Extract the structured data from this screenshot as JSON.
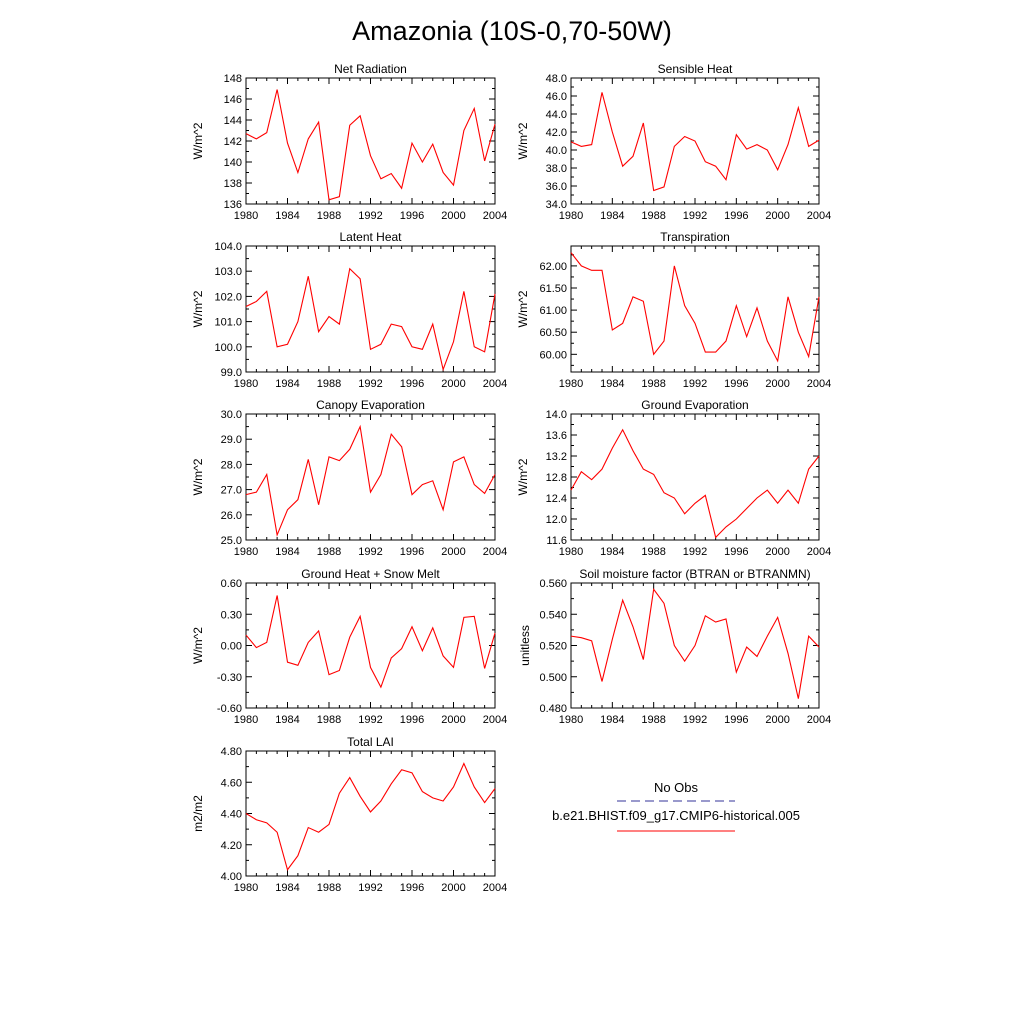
{
  "figure": {
    "title": "Amazonia (10S-0,70-50W)",
    "legend": {
      "entries": [
        {
          "label": "No Obs",
          "color": "#333399",
          "style": "dashed"
        },
        {
          "label": "b.e21.BHIST.f09_g17.CMIP6-historical.005",
          "color": "#ff0000",
          "style": "solid"
        }
      ]
    }
  },
  "chart_data": [
    {
      "type": "line",
      "title": "Net Radiation",
      "ylabel": "W/m^2",
      "xlim": [
        1980,
        2004
      ],
      "ylim": [
        136,
        148
      ],
      "xticks": [
        1980,
        1984,
        1988,
        1992,
        1996,
        2000,
        2004
      ],
      "yticks": [
        136,
        138,
        140,
        142,
        144,
        146,
        148
      ],
      "ytick_labels": [
        "136",
        "138",
        "140",
        "142",
        "144",
        "146",
        "148"
      ],
      "series": [
        {
          "color": "#ff0000",
          "x": [
            1980,
            1981,
            1982,
            1983,
            1984,
            1985,
            1986,
            1987,
            1988,
            1989,
            1990,
            1991,
            1992,
            1993,
            1994,
            1995,
            1996,
            1997,
            1998,
            1999,
            2000,
            2001,
            2002,
            2003,
            2004
          ],
          "values": [
            142.7,
            142.2,
            142.8,
            146.9,
            141.8,
            139.0,
            142.2,
            143.8,
            136.4,
            136.7,
            143.5,
            144.4,
            140.6,
            138.4,
            138.9,
            137.5,
            141.8,
            140.0,
            141.7,
            139.0,
            137.8,
            143.0,
            145.1,
            140.1,
            143.6
          ]
        }
      ]
    },
    {
      "type": "line",
      "title": "Sensible Heat",
      "ylabel": "W/m^2",
      "xlim": [
        1980,
        2004
      ],
      "ylim": [
        34,
        48
      ],
      "xticks": [
        1980,
        1984,
        1988,
        1992,
        1996,
        2000,
        2004
      ],
      "yticks": [
        34,
        36,
        38,
        40,
        42,
        44,
        46,
        48
      ],
      "ytick_labels": [
        "34.0",
        "36.0",
        "38.0",
        "40.0",
        "42.0",
        "44.0",
        "46.0",
        "48.0"
      ],
      "series": [
        {
          "color": "#ff0000",
          "x": [
            1980,
            1981,
            1982,
            1983,
            1984,
            1985,
            1986,
            1987,
            1988,
            1989,
            1990,
            1991,
            1992,
            1993,
            1994,
            1995,
            1996,
            1997,
            1998,
            1999,
            2000,
            2001,
            2002,
            2003,
            2004
          ],
          "values": [
            40.9,
            40.4,
            40.6,
            46.4,
            42.0,
            38.2,
            39.3,
            43.0,
            35.5,
            35.9,
            40.4,
            41.5,
            41.0,
            38.7,
            38.2,
            36.7,
            41.7,
            40.1,
            40.6,
            40.0,
            37.8,
            40.6,
            44.7,
            40.4,
            41.1
          ]
        }
      ]
    },
    {
      "type": "line",
      "title": "Latent Heat",
      "ylabel": "W/m^2",
      "xlim": [
        1980,
        2004
      ],
      "ylim": [
        99,
        104
      ],
      "xticks": [
        1980,
        1984,
        1988,
        1992,
        1996,
        2000,
        2004
      ],
      "yticks": [
        99,
        100,
        101,
        102,
        103,
        104
      ],
      "ytick_labels": [
        "99.0",
        "100.0",
        "101.0",
        "102.0",
        "103.0",
        "104.0"
      ],
      "series": [
        {
          "color": "#ff0000",
          "x": [
            1980,
            1981,
            1982,
            1983,
            1984,
            1985,
            1986,
            1987,
            1988,
            1989,
            1990,
            1991,
            1992,
            1993,
            1994,
            1995,
            1996,
            1997,
            1998,
            1999,
            2000,
            2001,
            2002,
            2003,
            2004
          ],
          "values": [
            101.6,
            101.8,
            102.2,
            100.0,
            100.1,
            101.0,
            102.8,
            100.6,
            101.2,
            100.9,
            103.1,
            102.7,
            99.9,
            100.1,
            100.9,
            100.8,
            100.0,
            99.9,
            100.9,
            99.1,
            100.2,
            102.2,
            100.0,
            99.8,
            102.1
          ]
        }
      ]
    },
    {
      "type": "line",
      "title": "Transpiration",
      "ylabel": "W/m^2",
      "xlim": [
        1980,
        2004
      ],
      "ylim": [
        59.6,
        62.45
      ],
      "xticks": [
        1980,
        1984,
        1988,
        1992,
        1996,
        2000,
        2004
      ],
      "yticks": [
        60.0,
        60.5,
        61.0,
        61.5,
        62.0
      ],
      "ytick_labels": [
        "60.00",
        "60.50",
        "61.00",
        "61.50",
        "62.00"
      ],
      "series": [
        {
          "color": "#ff0000",
          "x": [
            1980,
            1981,
            1982,
            1983,
            1984,
            1985,
            1986,
            1987,
            1988,
            1989,
            1990,
            1991,
            1992,
            1993,
            1994,
            1995,
            1996,
            1997,
            1998,
            1999,
            2000,
            2001,
            2002,
            2003,
            2004
          ],
          "values": [
            62.3,
            62.0,
            61.9,
            61.9,
            60.55,
            60.7,
            61.3,
            61.2,
            60.0,
            60.3,
            62.0,
            61.1,
            60.7,
            60.05,
            60.05,
            60.3,
            61.1,
            60.4,
            61.05,
            60.3,
            59.85,
            61.3,
            60.5,
            59.95,
            61.3
          ]
        }
      ]
    },
    {
      "type": "line",
      "title": "Canopy Evaporation",
      "ylabel": "W/m^2",
      "xlim": [
        1980,
        2004
      ],
      "ylim": [
        25,
        30
      ],
      "xticks": [
        1980,
        1984,
        1988,
        1992,
        1996,
        2000,
        2004
      ],
      "yticks": [
        25,
        26,
        27,
        28,
        29,
        30
      ],
      "ytick_labels": [
        "25.0",
        "26.0",
        "27.0",
        "28.0",
        "29.0",
        "30.0"
      ],
      "series": [
        {
          "color": "#ff0000",
          "x": [
            1980,
            1981,
            1982,
            1983,
            1984,
            1985,
            1986,
            1987,
            1988,
            1989,
            1990,
            1991,
            1992,
            1993,
            1994,
            1995,
            1996,
            1997,
            1998,
            1999,
            2000,
            2001,
            2002,
            2003,
            2004
          ],
          "values": [
            26.8,
            26.9,
            27.6,
            25.2,
            26.2,
            26.6,
            28.2,
            26.4,
            28.3,
            28.15,
            28.6,
            29.5,
            26.9,
            27.6,
            29.2,
            28.7,
            26.8,
            27.2,
            27.35,
            26.2,
            28.1,
            28.3,
            27.2,
            26.85,
            27.6
          ]
        }
      ]
    },
    {
      "type": "line",
      "title": "Ground Evaporation",
      "ylabel": "W/m^2",
      "xlim": [
        1980,
        2004
      ],
      "ylim": [
        11.6,
        14.0
      ],
      "xticks": [
        1980,
        1984,
        1988,
        1992,
        1996,
        2000,
        2004
      ],
      "yticks": [
        11.6,
        12.0,
        12.4,
        12.8,
        13.2,
        13.6,
        14.0
      ],
      "ytick_labels": [
        "11.6",
        "12.0",
        "12.4",
        "12.8",
        "13.2",
        "13.6",
        "14.0"
      ],
      "series": [
        {
          "color": "#ff0000",
          "x": [
            1980,
            1981,
            1982,
            1983,
            1984,
            1985,
            1986,
            1987,
            1988,
            1989,
            1990,
            1991,
            1992,
            1993,
            1994,
            1995,
            1996,
            1997,
            1998,
            1999,
            2000,
            2001,
            2002,
            2003,
            2004
          ],
          "values": [
            12.55,
            12.9,
            12.75,
            12.95,
            13.35,
            13.7,
            13.3,
            12.95,
            12.85,
            12.5,
            12.4,
            12.1,
            12.3,
            12.45,
            11.65,
            11.85,
            12.0,
            12.2,
            12.4,
            12.55,
            12.3,
            12.55,
            12.3,
            12.95,
            13.2
          ]
        }
      ]
    },
    {
      "type": "line",
      "title": "Ground Heat + Snow Melt",
      "ylabel": "W/m^2",
      "xlim": [
        1980,
        2004
      ],
      "ylim": [
        -0.6,
        0.6
      ],
      "xticks": [
        1980,
        1984,
        1988,
        1992,
        1996,
        2000,
        2004
      ],
      "yticks": [
        -0.6,
        -0.3,
        0.0,
        0.3,
        0.6
      ],
      "ytick_labels": [
        "-0.60",
        "-0.30",
        "0.00",
        "0.30",
        "0.60"
      ],
      "series": [
        {
          "color": "#ff0000",
          "x": [
            1980,
            1981,
            1982,
            1983,
            1984,
            1985,
            1986,
            1987,
            1988,
            1989,
            1990,
            1991,
            1992,
            1993,
            1994,
            1995,
            1996,
            1997,
            1998,
            1999,
            2000,
            2001,
            2002,
            2003,
            2004
          ],
          "values": [
            0.1,
            -0.02,
            0.03,
            0.48,
            -0.16,
            -0.19,
            0.03,
            0.14,
            -0.28,
            -0.24,
            0.08,
            0.28,
            -0.21,
            -0.4,
            -0.12,
            -0.03,
            0.18,
            -0.05,
            0.17,
            -0.1,
            -0.21,
            0.27,
            0.28,
            -0.22,
            0.12
          ]
        }
      ]
    },
    {
      "type": "line",
      "title": "Soil moisture factor (BTRAN or BTRANMN)",
      "ylabel": "unitless",
      "xlim": [
        1980,
        2004
      ],
      "ylim": [
        0.48,
        0.56
      ],
      "xticks": [
        1980,
        1984,
        1988,
        1992,
        1996,
        2000,
        2004
      ],
      "yticks": [
        0.48,
        0.5,
        0.52,
        0.54,
        0.56
      ],
      "ytick_labels": [
        "0.480",
        "0.500",
        "0.520",
        "0.540",
        "0.560"
      ],
      "series": [
        {
          "color": "#ff0000",
          "x": [
            1980,
            1981,
            1982,
            1983,
            1984,
            1985,
            1986,
            1987,
            1988,
            1989,
            1990,
            1991,
            1992,
            1993,
            1994,
            1995,
            1996,
            1997,
            1998,
            1999,
            2000,
            2001,
            2002,
            2003,
            2004
          ],
          "values": [
            0.526,
            0.525,
            0.523,
            0.497,
            0.524,
            0.549,
            0.532,
            0.511,
            0.556,
            0.547,
            0.52,
            0.51,
            0.52,
            0.539,
            0.535,
            0.537,
            0.503,
            0.519,
            0.513,
            0.526,
            0.538,
            0.515,
            0.486,
            0.526,
            0.519
          ]
        }
      ]
    },
    {
      "type": "line",
      "title": "Total LAI",
      "ylabel": "m2/m2",
      "xlim": [
        1980,
        2004
      ],
      "ylim": [
        4.0,
        4.8
      ],
      "xticks": [
        1980,
        1984,
        1988,
        1992,
        1996,
        2000,
        2004
      ],
      "yticks": [
        4.0,
        4.2,
        4.4,
        4.6,
        4.8
      ],
      "ytick_labels": [
        "4.00",
        "4.20",
        "4.40",
        "4.60",
        "4.80"
      ],
      "series": [
        {
          "color": "#ff0000",
          "x": [
            1980,
            1981,
            1982,
            1983,
            1984,
            1985,
            1986,
            1987,
            1988,
            1989,
            1990,
            1991,
            1992,
            1993,
            1994,
            1995,
            1996,
            1997,
            1998,
            1999,
            2000,
            2001,
            2002,
            2003,
            2004
          ],
          "values": [
            4.4,
            4.36,
            4.34,
            4.28,
            4.04,
            4.13,
            4.31,
            4.28,
            4.33,
            4.53,
            4.63,
            4.51,
            4.41,
            4.48,
            4.59,
            4.68,
            4.66,
            4.54,
            4.5,
            4.48,
            4.57,
            4.72,
            4.57,
            4.47,
            4.56
          ]
        }
      ]
    }
  ]
}
